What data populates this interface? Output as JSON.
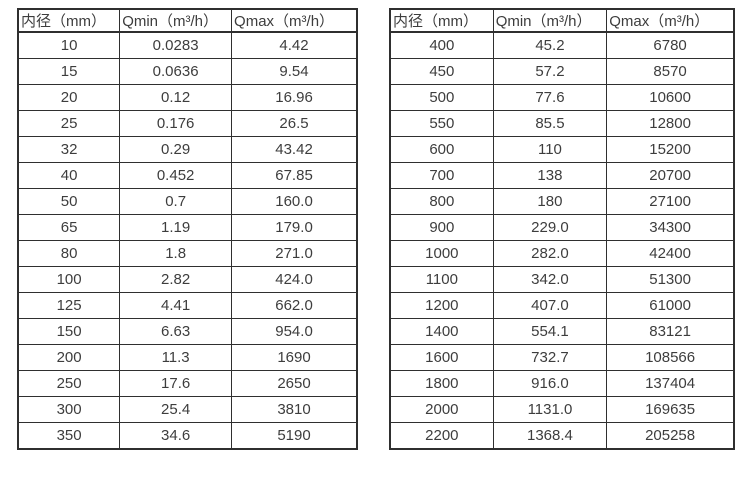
{
  "colors": {
    "border": "#2f2f2f",
    "text": "#3d3d3d",
    "background": "#ffffff"
  },
  "chart_data": [
    {
      "type": "table",
      "title": "",
      "columns": [
        "内径（mm）",
        "Qmin（m³/h）",
        "Qmax（m³/h）"
      ],
      "rows": [
        [
          "10",
          "0.0283",
          "4.42"
        ],
        [
          "15",
          "0.0636",
          "9.54"
        ],
        [
          "20",
          "0.12",
          "16.96"
        ],
        [
          "25",
          "0.176",
          "26.5"
        ],
        [
          "32",
          "0.29",
          "43.42"
        ],
        [
          "40",
          "0.452",
          "67.85"
        ],
        [
          "50",
          "0.7",
          "160.0"
        ],
        [
          "65",
          "1.19",
          "179.0"
        ],
        [
          "80",
          "1.8",
          "271.0"
        ],
        [
          "100",
          "2.82",
          "424.0"
        ],
        [
          "125",
          "4.41",
          "662.0"
        ],
        [
          "150",
          "6.63",
          "954.0"
        ],
        [
          "200",
          "11.3",
          "1690"
        ],
        [
          "250",
          "17.6",
          "2650"
        ],
        [
          "300",
          "25.4",
          "3810"
        ],
        [
          "350",
          "34.6",
          "5190"
        ]
      ]
    },
    {
      "type": "table",
      "title": "",
      "columns": [
        "内径（mm）",
        "Qmin（m³/h）",
        "Qmax（m³/h）"
      ],
      "rows": [
        [
          "400",
          "45.2",
          "6780"
        ],
        [
          "450",
          "57.2",
          "8570"
        ],
        [
          "500",
          "77.6",
          "10600"
        ],
        [
          "550",
          "85.5",
          "12800"
        ],
        [
          "600",
          "110",
          "15200"
        ],
        [
          "700",
          "138",
          "20700"
        ],
        [
          "800",
          "180",
          "27100"
        ],
        [
          "900",
          "229.0",
          "34300"
        ],
        [
          "1000",
          "282.0",
          "42400"
        ],
        [
          "1100",
          "342.0",
          "51300"
        ],
        [
          "1200",
          "407.0",
          "61000"
        ],
        [
          "1400",
          "554.1",
          "83121"
        ],
        [
          "1600",
          "732.7",
          "108566"
        ],
        [
          "1800",
          "916.0",
          "137404"
        ],
        [
          "2000",
          "1131.0",
          "169635"
        ],
        [
          "2200",
          "1368.4",
          "205258"
        ]
      ]
    }
  ]
}
